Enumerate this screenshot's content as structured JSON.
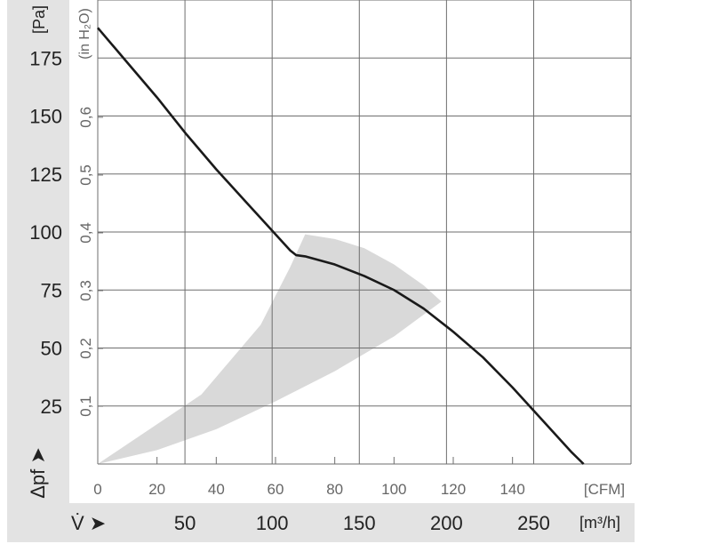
{
  "chart_data": {
    "type": "line",
    "title": "",
    "x_axis_primary": {
      "unit": "[CFM]",
      "range": [
        0,
        165
      ],
      "ticks": [
        0,
        20,
        40,
        60,
        80,
        100,
        120,
        140
      ],
      "tick_labels": [
        "0",
        "20",
        "40",
        "60",
        "80",
        "100",
        "120",
        "140"
      ]
    },
    "x_axis_secondary": {
      "symbol": "V̇ ➤",
      "unit": "[m³/h]",
      "ticks": [
        50,
        100,
        150,
        200,
        250
      ],
      "tick_labels": [
        "50",
        "100",
        "150",
        "200",
        "250"
      ]
    },
    "y_axis_primary": {
      "symbol": "Δpf ➤",
      "unit": "[Pa]",
      "range": [
        0,
        200
      ],
      "ticks": [
        25,
        50,
        75,
        100,
        125,
        150,
        175
      ],
      "tick_labels": [
        "25",
        "50",
        "75",
        "100",
        "125",
        "150",
        "175"
      ]
    },
    "y_axis_secondary": {
      "unit": "(in H₂O)",
      "ticks": [
        0.1,
        0.2,
        0.3,
        0.4,
        0.5,
        0.6
      ],
      "tick_labels": [
        "0,1",
        "0,2",
        "0,3",
        "0,4",
        "0,5",
        "0,6"
      ]
    },
    "grid": true,
    "series": [
      {
        "color": "#1a1a1a",
        "x": [
          0,
          10,
          20,
          30,
          40,
          50,
          60,
          65,
          67,
          70,
          80,
          90,
          100,
          110,
          120,
          130,
          140,
          150,
          160,
          164
        ],
        "y": [
          188,
          173,
          158,
          142,
          127,
          113,
          99,
          92,
          90,
          89.5,
          86,
          81,
          75,
          67,
          57,
          46,
          33,
          19,
          5,
          0
        ]
      }
    ],
    "operating_region": {
      "color": "#d9d9d9",
      "upper_x": [
        0,
        35,
        55,
        65,
        70,
        80,
        90,
        100,
        110,
        116
      ],
      "upper_y": [
        0,
        30,
        60,
        85,
        99,
        97,
        93,
        86,
        77,
        70
      ],
      "lower_x": [
        116,
        100,
        80,
        60,
        40,
        20,
        0
      ],
      "lower_y": [
        70,
        55,
        40,
        27,
        15,
        6,
        0
      ]
    }
  }
}
